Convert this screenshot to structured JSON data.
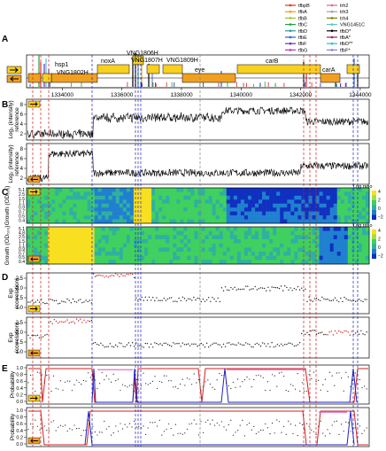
{
  "figure": {
    "panel_letters": [
      "A",
      "B",
      "C",
      "D",
      "E"
    ],
    "legend": {
      "col1": [
        {
          "label": "tfbpB",
          "color": "#e03030"
        },
        {
          "label": "tfbA",
          "color": "#e0a020"
        },
        {
          "label": "tfbB",
          "color": "#a0c020"
        },
        {
          "label": "tfbC",
          "color": "#20a040"
        },
        {
          "label": "tfbD",
          "color": "#20a0a0"
        },
        {
          "label": "tfbE",
          "color": "#2060e0"
        },
        {
          "label": "tfbF",
          "color": "#6030c0"
        },
        {
          "label": "tfbG",
          "color": "#c030c0"
        }
      ],
      "col2": [
        {
          "label": "trh2",
          "color": "#e060a0"
        },
        {
          "label": "trh3",
          "color": "#a0a0a0"
        },
        {
          "label": "trh4",
          "color": "#808000"
        },
        {
          "label": "VNG1451C",
          "color": "#60c0c0"
        },
        {
          "label": "tfbD*",
          "color": "#000000"
        },
        {
          "label": "tfbA*",
          "color": "#a02060"
        },
        {
          "label": "tfbD**",
          "color": "#20c0e0"
        },
        {
          "label": "tfbF*",
          "color": "#8080e0"
        }
      ]
    },
    "genes": [
      "hsp1",
      "VNG1802H",
      "noxA",
      "VNG1806H",
      "VNG1807H",
      "VNG1809H",
      "eye",
      "carB",
      "carA"
    ],
    "axis": {
      "ticks": [
        "1334000",
        "1336000",
        "1338000",
        "1340000",
        "1342000",
        "1344000"
      ],
      "tick_values": [
        1334000,
        1336000,
        1338000,
        1340000,
        1342000,
        1344000
      ],
      "range": [
        1332800,
        1344300
      ]
    },
    "panel_b": {
      "ylabel_main": "Log₂ (intensity)",
      "ylabel_sub": "reference",
      "yticks": [
        "8",
        "6",
        "4",
        "2"
      ]
    },
    "panel_c": {
      "ylabel": "Growth (OD₆₀₀)",
      "yticks_top": [
        "5.1",
        "2.5",
        "1.5",
        "1.1",
        "0.9",
        "0.7",
        "0.5",
        "0.4"
      ],
      "yticks_bottom": [
        "5.1",
        "4.8",
        "2.5",
        "1.5",
        "1.1",
        "0.9",
        "0.7",
        "0.5",
        "0.4"
      ],
      "colorbar_title": "Log ratio",
      "colorbar_ticks": [
        "4",
        "2",
        "0",
        "−2"
      ]
    },
    "panel_d": {
      "ylabel_main": "Exp",
      "ylabel_sub": "(correlation)",
      "yticks": [
        "2.5",
        "2.0",
        "1.5",
        "1.0"
      ]
    },
    "panel_e": {
      "ylabel": "Probability",
      "yticks": [
        "1.0",
        "0.8",
        "0.6",
        "0.4",
        "0.2",
        "0.0"
      ]
    },
    "colors": {
      "gene_box": "#f8d020",
      "operon_box": "#f0a020",
      "red_marker": "#d02020",
      "blue_marker": "#2020c0",
      "dots": "#202020",
      "pink_fit": "#e060c0"
    }
  }
}
